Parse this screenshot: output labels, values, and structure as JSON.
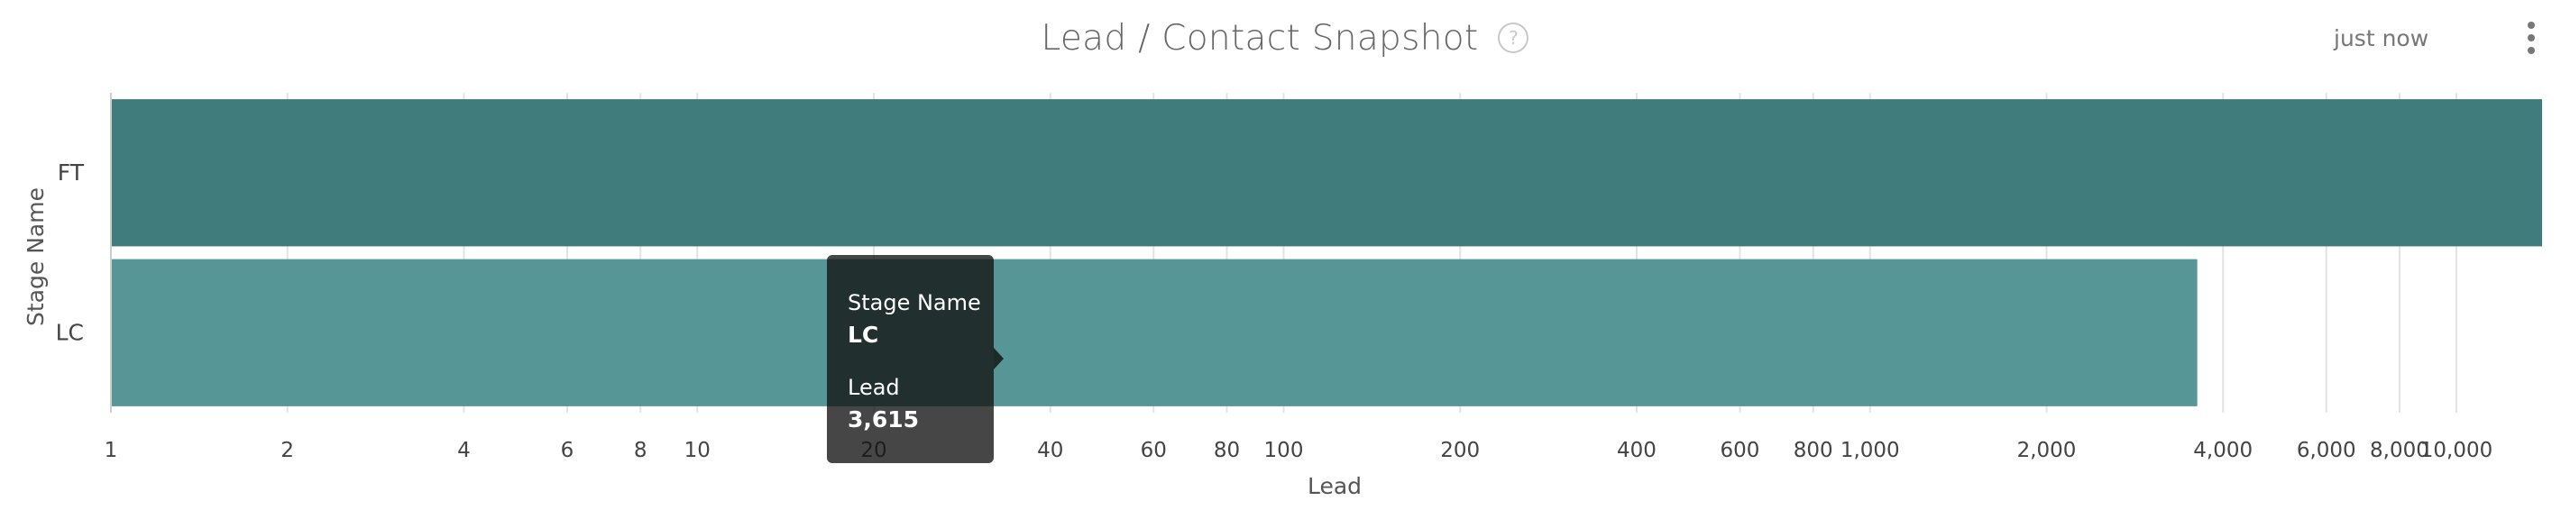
{
  "header": {
    "title": "Lead / Contact Snapshot",
    "help_glyph": "?",
    "timestamp": "just now",
    "help_icon": "question-circle-icon",
    "menu_icon": "vertical-ellipsis-icon"
  },
  "chart_data": {
    "type": "bar",
    "orientation": "horizontal",
    "title": "Lead / Contact Snapshot",
    "xlabel": "Lead",
    "ylabel": "Stage Name",
    "xscale": "log",
    "xlim": [
      1,
      10000
    ],
    "grid": true,
    "categories": [
      "FT",
      "LC"
    ],
    "values": [
      14000,
      3615
    ],
    "colors": [
      "#3f7c7b",
      "#569696"
    ],
    "ticks": [
      {
        "value": 1,
        "label": "1"
      },
      {
        "value": 2,
        "label": "2"
      },
      {
        "value": 4,
        "label": "4"
      },
      {
        "value": 6,
        "label": "6"
      },
      {
        "value": 8,
        "label": "8"
      },
      {
        "value": 10,
        "label": "10"
      },
      {
        "value": 20,
        "label": "20"
      },
      {
        "value": 40,
        "label": "40"
      },
      {
        "value": 60,
        "label": "60"
      },
      {
        "value": 80,
        "label": "80"
      },
      {
        "value": 100,
        "label": "100"
      },
      {
        "value": 200,
        "label": "200"
      },
      {
        "value": 400,
        "label": "400"
      },
      {
        "value": 600,
        "label": "600"
      },
      {
        "value": 800,
        "label": "800"
      },
      {
        "value": 1000,
        "label": "1,000"
      },
      {
        "value": 2000,
        "label": "2,000"
      },
      {
        "value": 4000,
        "label": "4,000"
      },
      {
        "value": 6000,
        "label": "6,000"
      },
      {
        "value": 8000,
        "label": "8,000"
      },
      {
        "value": 10000,
        "label": "10,000"
      }
    ]
  },
  "tooltip": {
    "category_label": "Stage Name",
    "category_value": "LC",
    "measure_label": "Lead",
    "measure_value": "3,615"
  }
}
